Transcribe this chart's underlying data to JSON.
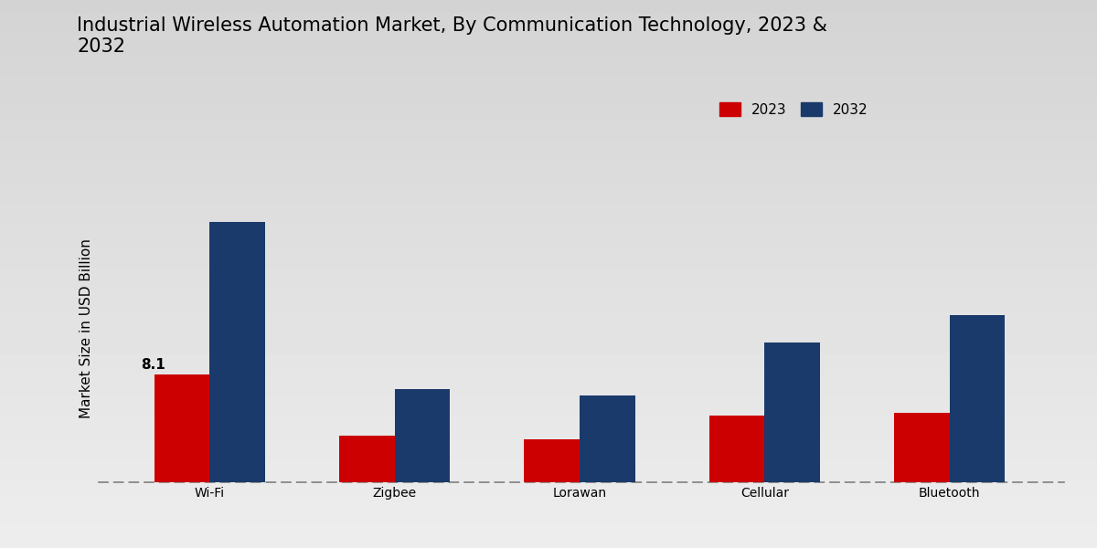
{
  "title": "Industrial Wireless Automation Market, By Communication Technology, 2023 &\n2032",
  "ylabel": "Market Size in USD Billion",
  "categories": [
    "Wi-Fi",
    "Zigbee",
    "Lorawan",
    "Cellular",
    "Bluetooth"
  ],
  "values_2023": [
    8.1,
    3.5,
    3.2,
    5.0,
    5.2
  ],
  "values_2032": [
    19.5,
    7.0,
    6.5,
    10.5,
    12.5
  ],
  "color_2023": "#cc0000",
  "color_2032": "#1a3a6b",
  "bar_width": 0.3,
  "annotation_text": "8.1",
  "legend_labels": [
    "2023",
    "2032"
  ],
  "bg_top": "#d8d8d8",
  "bg_bottom": "#e8e8e8",
  "ylim": [
    0,
    23
  ],
  "title_fontsize": 15,
  "label_fontsize": 11,
  "tick_fontsize": 10,
  "legend_fontsize": 11
}
